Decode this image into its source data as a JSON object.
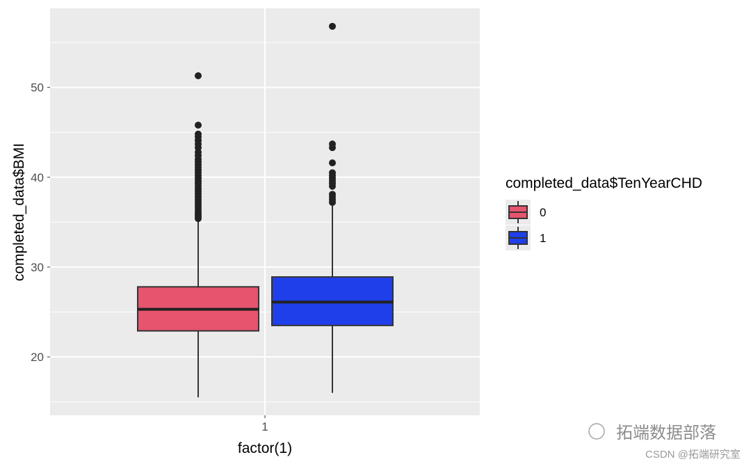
{
  "chart_data": {
    "type": "boxplot",
    "title": "",
    "xlabel": "factor(1)",
    "ylabel": "completed_data$BMI",
    "x_categories": [
      "1"
    ],
    "yticks": [
      20,
      30,
      40,
      50
    ],
    "ylim": [
      13.5,
      58.8
    ],
    "grid": true,
    "legend": {
      "title": "completed_data$TenYearCHD",
      "placement": "right"
    },
    "series": [
      {
        "name": "0",
        "color": "#E6546E",
        "whisker_low": 15.5,
        "q1": 22.9,
        "median": 25.3,
        "q3": 27.8,
        "whisker_high": 35.3,
        "outliers": [
          35.4,
          35.6,
          35.8,
          36.0,
          36.3,
          36.6,
          36.9,
          37.2,
          37.5,
          37.8,
          38.1,
          38.4,
          38.7,
          39.0,
          39.3,
          39.6,
          39.9,
          40.2,
          40.5,
          40.8,
          41.1,
          41.4,
          41.7,
          42.0,
          42.4,
          42.8,
          43.3,
          43.7,
          44.1,
          44.5,
          44.8,
          45.8,
          51.3
        ]
      },
      {
        "name": "1",
        "color": "#1F3FEA",
        "whisker_low": 16.0,
        "q1": 23.5,
        "median": 26.1,
        "q3": 28.9,
        "whisker_high": 37.0,
        "outliers": [
          37.2,
          37.5,
          37.8,
          38.1,
          39.0,
          39.3,
          39.6,
          39.9,
          40.2,
          40.5,
          41.6,
          43.3,
          43.7,
          56.8
        ]
      }
    ]
  },
  "watermark": {
    "line1": "拓端数据部落",
    "line2": "CSDN @拓端研究室"
  }
}
